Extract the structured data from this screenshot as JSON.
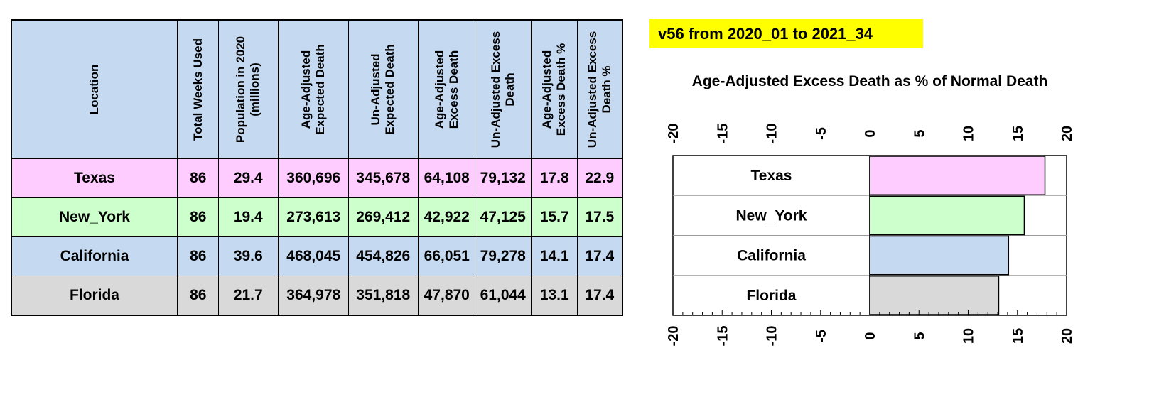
{
  "banner": {
    "text": "v56 from 2020_01  to 2021_34",
    "color": "#ffff00"
  },
  "table": {
    "headers": [
      "Location",
      "Total Weeks Used",
      "Population in 2020\n(millions)",
      "Age-Adjusted\nExpected Death",
      "Un-Adjusted\nExpected Death",
      "Age-Adjusted\nExcess Death",
      "Un-Adjusted Excess\nDeath",
      "Age-Adjusted\nExcess Death %",
      "Un-Adjusted Excess\nDeath %"
    ],
    "header_bg": "#c5d9f1",
    "rows": [
      {
        "location": "Texas",
        "weeks": "86",
        "population": "29.4",
        "aa_expected": "360,696",
        "ua_expected": "345,678",
        "aa_excess": "64,108",
        "ua_excess": "79,132",
        "aa_pct": "17.8",
        "ua_pct": "22.9",
        "color": "#ffccff"
      },
      {
        "location": "New_York",
        "weeks": "86",
        "population": "19.4",
        "aa_expected": "273,613",
        "ua_expected": "269,412",
        "aa_excess": "42,922",
        "ua_excess": "47,125",
        "aa_pct": "15.7",
        "ua_pct": "17.5",
        "color": "#ccffcc"
      },
      {
        "location": "California",
        "weeks": "86",
        "population": "39.6",
        "aa_expected": "468,045",
        "ua_expected": "454,826",
        "aa_excess": "66,051",
        "ua_excess": "79,278",
        "aa_pct": "14.1",
        "ua_pct": "17.4",
        "color": "#c5d9f1"
      },
      {
        "location": "Florida",
        "weeks": "86",
        "population": "21.7",
        "aa_expected": "364,978",
        "ua_expected": "351,818",
        "aa_excess": "47,870",
        "ua_excess": "61,044",
        "aa_pct": "13.1",
        "ua_pct": "17.4",
        "color": "#d9d9d9"
      }
    ]
  },
  "chart_data": {
    "type": "bar",
    "orientation": "horizontal",
    "title": "Age-Adjusted Excess Death as %  of Normal Death",
    "categories": [
      "Texas",
      "New_York",
      "California",
      "Florida"
    ],
    "values": [
      17.8,
      15.7,
      14.1,
      13.1
    ],
    "colors": [
      "#ffccff",
      "#ccffcc",
      "#c5d9f1",
      "#d9d9d9"
    ],
    "xlim": [
      -20,
      20
    ],
    "xticks": [
      "-20",
      "-15",
      "-10",
      "-5",
      "0",
      "5",
      "10",
      "15",
      "20"
    ],
    "minor_step": 1,
    "grid": false
  }
}
